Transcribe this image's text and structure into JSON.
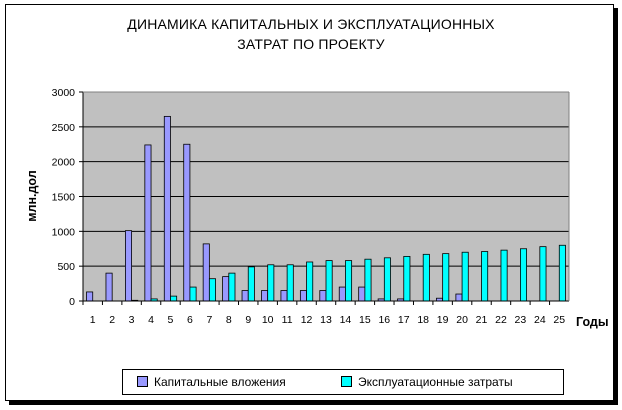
{
  "chart_data": {
    "type": "bar",
    "title_lines": [
      "ДИНАМИКА КАПИТАЛЬНЫХ И ЭКСПЛУАТАЦИОННЫХ",
      "ЗАТРАТ ПО ПРОЕКТУ"
    ],
    "xlabel": "Годы",
    "ylabel": "млн.дол",
    "ylim": [
      0,
      3000
    ],
    "yticks": [
      0,
      500,
      1000,
      1500,
      2000,
      2500,
      3000
    ],
    "grid": true,
    "legend_position": "bottom",
    "categories": [
      "1",
      "2",
      "3",
      "4",
      "5",
      "6",
      "7",
      "8",
      "9",
      "10",
      "11",
      "12",
      "13",
      "14",
      "15",
      "16",
      "17",
      "18",
      "19",
      "20",
      "21",
      "22",
      "23",
      "24",
      "25"
    ],
    "series": [
      {
        "name": "Капитальные вложения",
        "color": "#9999ff",
        "values": [
          130,
          400,
          1010,
          2240,
          2650,
          2250,
          820,
          350,
          150,
          150,
          150,
          150,
          150,
          200,
          200,
          30,
          30,
          0,
          40,
          100,
          0,
          0,
          0,
          0,
          0
        ]
      },
      {
        "name": "Эксплуатационные затраты",
        "color": "#00ffff",
        "values": [
          0,
          0,
          10,
          30,
          70,
          200,
          320,
          400,
          490,
          520,
          520,
          560,
          580,
          580,
          600,
          620,
          640,
          670,
          680,
          700,
          710,
          730,
          750,
          780,
          800
        ]
      }
    ],
    "plot_background": "#c0c0c0"
  }
}
